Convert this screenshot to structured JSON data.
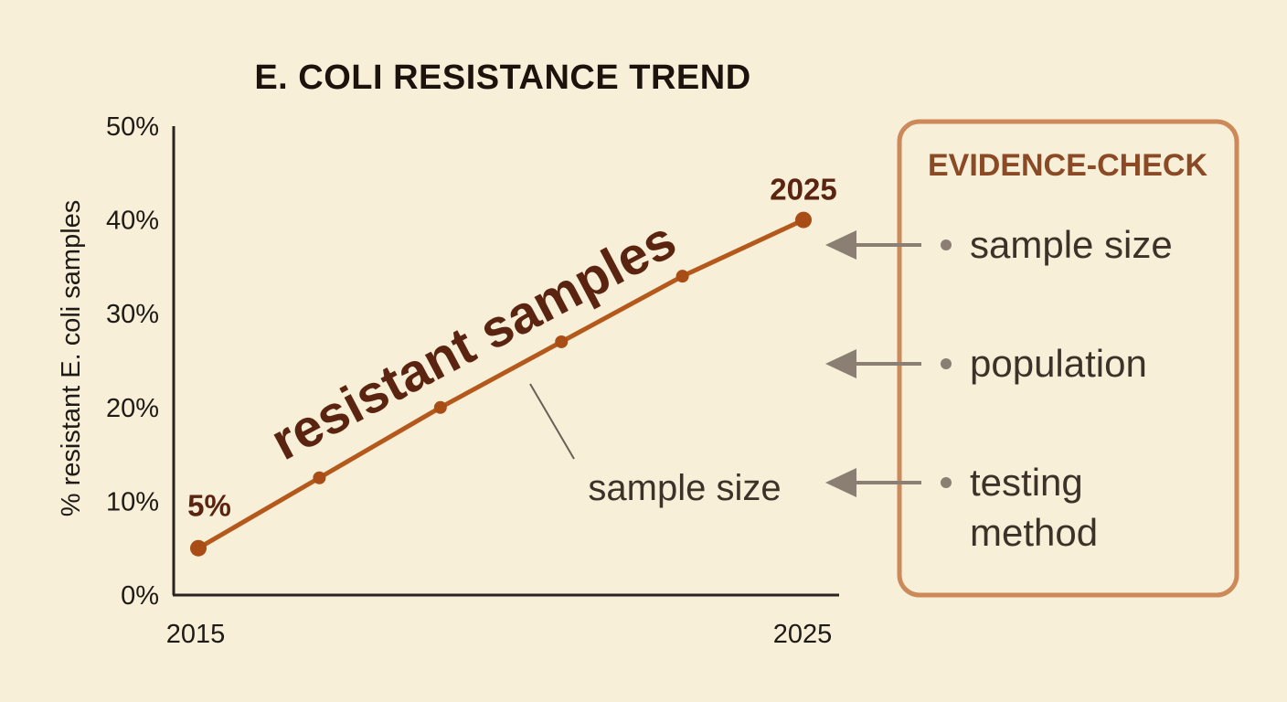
{
  "chart_data": {
    "type": "line",
    "title": "E. COLI RESISTANCE TREND",
    "xlabel": "",
    "ylabel": "% resistant E. coli samples",
    "x_tick_labels": [
      "2015",
      "2025"
    ],
    "y_tick_labels": [
      "0%",
      "10%",
      "20%",
      "30%",
      "40%",
      "50%"
    ],
    "xlim": [
      2015,
      2025
    ],
    "ylim": [
      0,
      50
    ],
    "grid": false,
    "series": [
      {
        "color": "#b4581c",
        "points": [
          {
            "x": 2015,
            "y": 5
          },
          {
            "x": 2017,
            "y": 12.5
          },
          {
            "x": 2019,
            "y": 20
          },
          {
            "x": 2021,
            "y": 27
          },
          {
            "x": 2023,
            "y": 34
          },
          {
            "x": 2025,
            "y": 40
          }
        ]
      }
    ],
    "data_labels": [
      {
        "x": 2015,
        "y": 5,
        "text": "5%"
      },
      {
        "x": 2025,
        "y": 40,
        "text": "2025"
      }
    ],
    "line_annotation": "resistant samples",
    "callout": "sample size"
  },
  "evidence_panel": {
    "title": "EVIDENCE-CHECK",
    "items": [
      {
        "lines": [
          "sample size"
        ]
      },
      {
        "lines": [
          "population"
        ]
      },
      {
        "lines": [
          "testing",
          "method"
        ]
      }
    ]
  },
  "colors": {
    "background": "#f7efd8",
    "line": "#b4581c",
    "marker": "#a94d16",
    "label_text": "#5a2410",
    "panel_border": "#cc8a5a",
    "panel_title": "#8a4a26",
    "arrow": "#8a7f72",
    "bullet": "#8a7f72"
  }
}
